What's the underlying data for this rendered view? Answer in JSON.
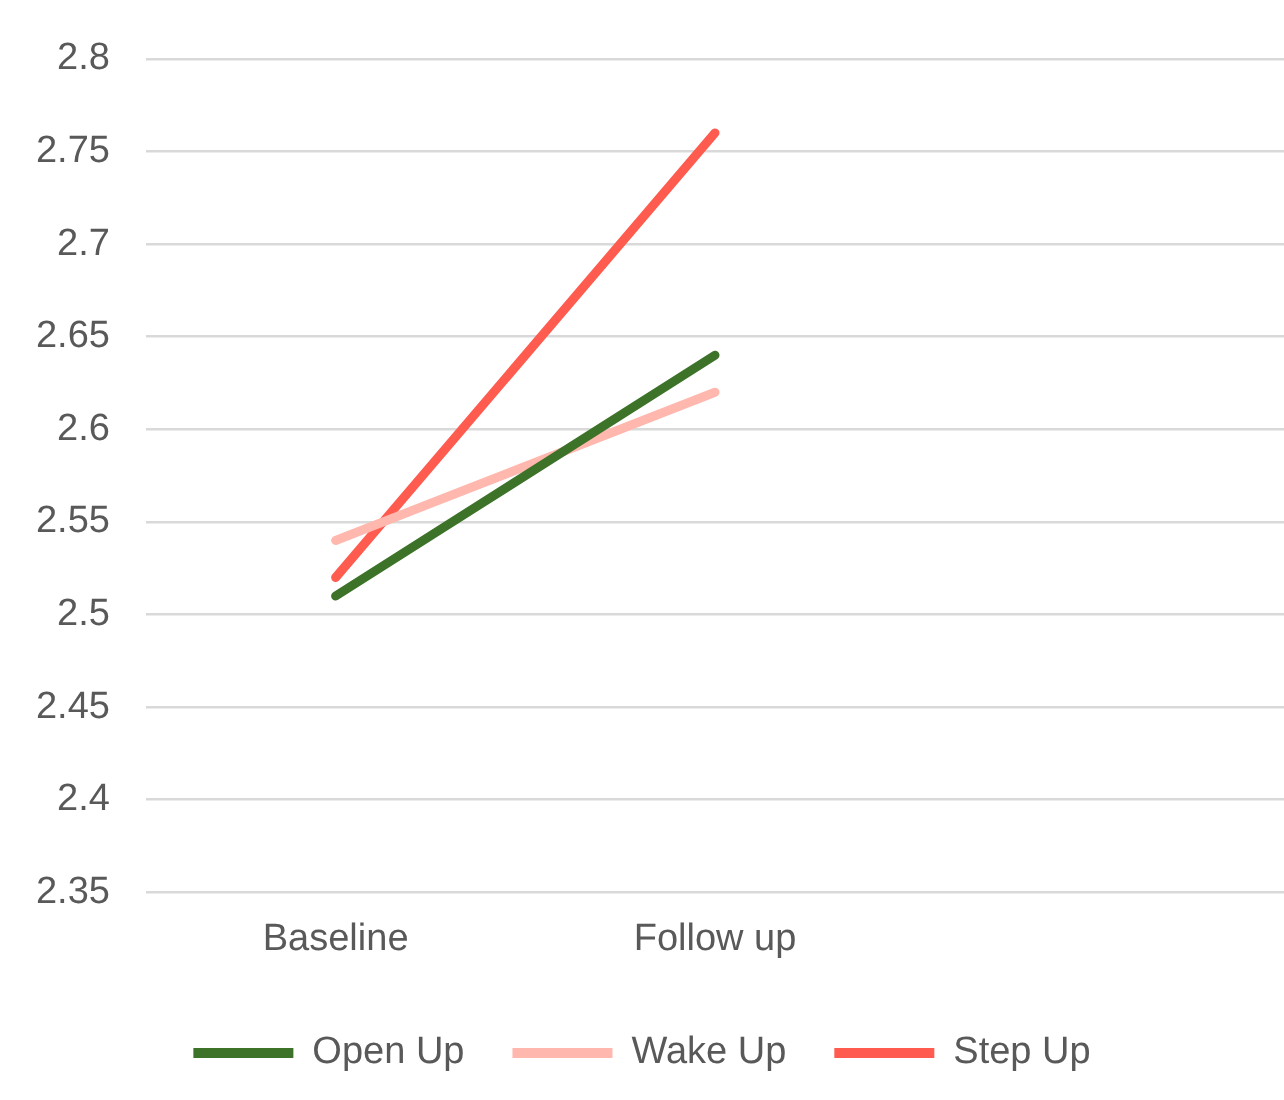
{
  "chart_data": {
    "type": "line",
    "categories": [
      "Baseline",
      "Follow up",
      null
    ],
    "series": [
      {
        "name": "Open Up",
        "color": "#3d7229",
        "values": [
          2.51,
          2.64,
          null
        ]
      },
      {
        "name": "Wake Up",
        "color": "#ffb7ae",
        "values": [
          2.54,
          2.62,
          null
        ]
      },
      {
        "name": "Step Up",
        "color": "#ff5b4f",
        "values": [
          2.52,
          2.76,
          null
        ]
      }
    ],
    "ylim": [
      2.35,
      2.8
    ],
    "yticks": [
      2.35,
      2.4,
      2.45,
      2.5,
      2.55,
      2.6,
      2.65,
      2.7,
      2.75,
      2.8
    ],
    "grid": "y",
    "legend": "bottom",
    "marker": "none",
    "line_style": "solid"
  }
}
